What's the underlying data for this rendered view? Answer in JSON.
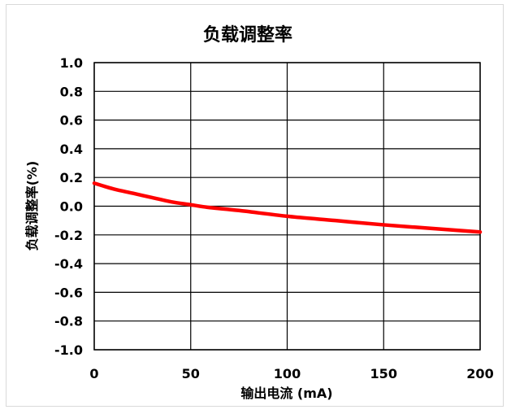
{
  "chart_data": {
    "type": "line",
    "title": "负载调整率",
    "xlabel": "输出电流 (mA)",
    "ylabel": "负载调整率(%)",
    "xlim": [
      0,
      200
    ],
    "ylim": [
      -1.0,
      1.0
    ],
    "x_ticks": [
      "0",
      "50",
      "100",
      "150",
      "200"
    ],
    "y_ticks": [
      "1.0",
      "0.8",
      "0.6",
      "0.4",
      "0.2",
      "0.0",
      "-0.2",
      "-0.4",
      "-0.6",
      "-0.8",
      "-1.0"
    ],
    "grid": true,
    "legend": "none",
    "series": [
      {
        "color": "#ff0000",
        "x": [
          0,
          10,
          20,
          30,
          40,
          50,
          60,
          75,
          100,
          125,
          150,
          175,
          200
        ],
        "y": [
          0.16,
          0.12,
          0.09,
          0.06,
          0.03,
          0.01,
          -0.01,
          -0.03,
          -0.07,
          -0.1,
          -0.13,
          -0.155,
          -0.18
        ]
      }
    ]
  }
}
